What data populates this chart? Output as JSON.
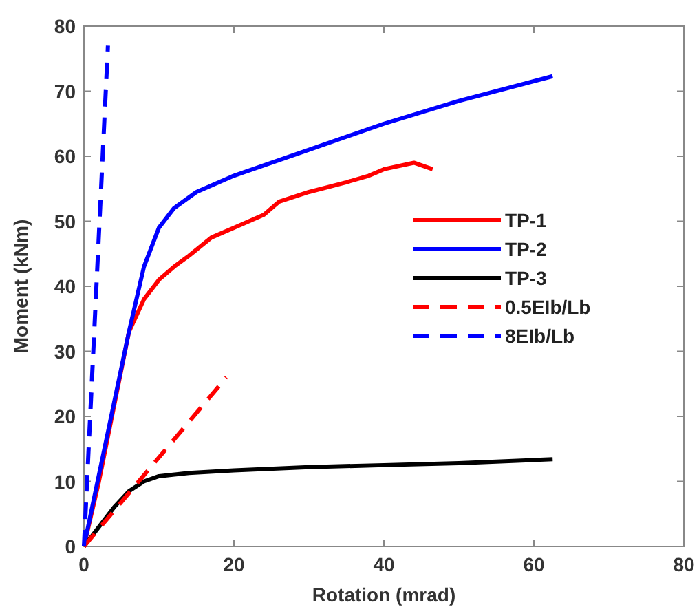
{
  "chart_data": {
    "type": "line",
    "xlabel": "Rotation (mrad)",
    "ylabel": "Moment (kNm)",
    "xlim": [
      0,
      80
    ],
    "ylim": [
      0,
      80
    ],
    "xticks": [
      0,
      20,
      40,
      60,
      80
    ],
    "yticks": [
      0,
      10,
      20,
      30,
      40,
      50,
      60,
      70,
      80
    ],
    "grid": false,
    "legend": "right",
    "series": [
      {
        "name": "TP-1",
        "color": "#ff0000",
        "line_style": "solid",
        "x": [
          0,
          2,
          6,
          8,
          10,
          12,
          14,
          17,
          20,
          24,
          26,
          30,
          35,
          38,
          40,
          44,
          46.5
        ],
        "values": [
          0,
          10,
          33,
          38,
          41,
          43,
          44.7,
          47.5,
          49,
          51,
          53,
          54.5,
          56,
          57,
          58,
          59,
          58
        ]
      },
      {
        "name": "TP-2",
        "color": "#0000ff",
        "line_style": "solid",
        "x": [
          0,
          4,
          6,
          8,
          10,
          12,
          15,
          20,
          30,
          40,
          50,
          62.5
        ],
        "values": [
          0,
          22,
          33,
          43,
          49,
          52,
          54.5,
          57,
          61,
          65,
          68.5,
          72.3
        ]
      },
      {
        "name": "TP-3",
        "color": "#000000",
        "line_style": "solid",
        "x": [
          0,
          2,
          4,
          6,
          8,
          10,
          14,
          20,
          30,
          40,
          50,
          62.5
        ],
        "values": [
          0,
          3,
          6,
          8.5,
          10,
          10.8,
          11.3,
          11.7,
          12.2,
          12.5,
          12.8,
          13.4
        ]
      },
      {
        "name": "0.5EIb/Lb",
        "color": "#ff0000",
        "line_style": "dashed",
        "x": [
          0,
          19
        ],
        "values": [
          0,
          26
        ]
      },
      {
        "name": "8EIb/Lb",
        "color": "#0000ff",
        "line_style": "dashed",
        "x": [
          0,
          3.2
        ],
        "values": [
          0,
          77
        ]
      }
    ]
  }
}
